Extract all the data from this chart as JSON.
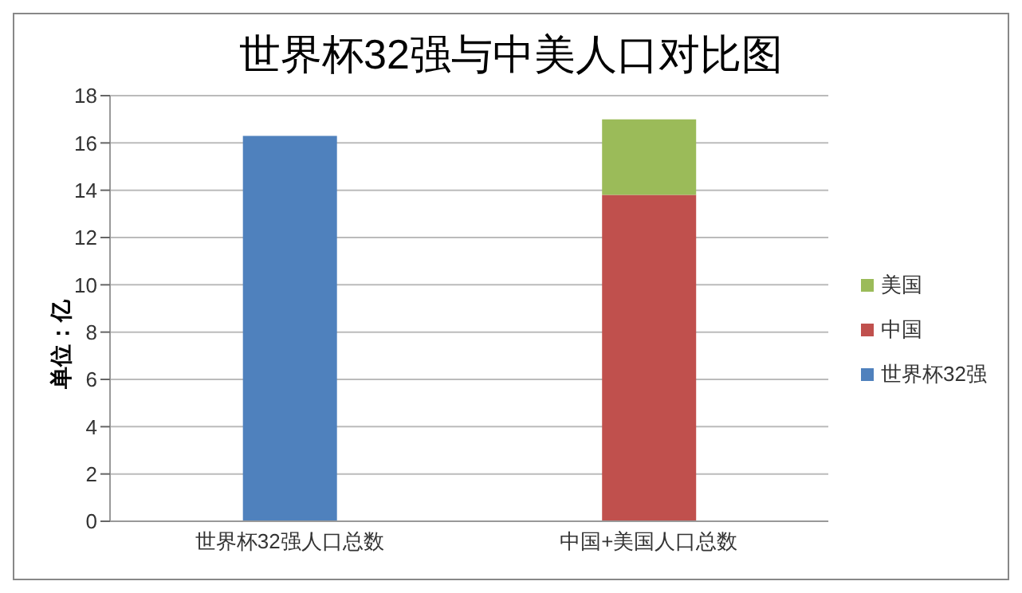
{
  "chart_data": {
    "type": "bar",
    "title": "世界杯32强与中美人口对比图",
    "ylabel": "单位：亿",
    "categories": [
      "世界杯32强人口总数",
      "中国+美国人口总数"
    ],
    "stacked": true,
    "series": [
      {
        "name": "世界杯32强",
        "color": "#4f81bd",
        "values": [
          16.3,
          null
        ]
      },
      {
        "name": "中国",
        "color": "#c0504d",
        "values": [
          null,
          13.8
        ]
      },
      {
        "name": "美国",
        "color": "#9bbb59",
        "values": [
          null,
          3.2
        ]
      }
    ],
    "ylim": [
      0,
      18
    ],
    "yticks": [
      0,
      2,
      4,
      6,
      8,
      10,
      12,
      14,
      16,
      18
    ],
    "grid": "y",
    "legend": "right"
  }
}
